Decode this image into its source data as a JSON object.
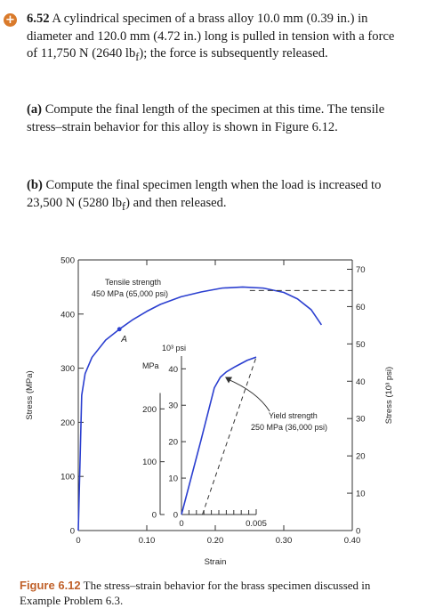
{
  "problem": {
    "number": "6.52",
    "intro": "A cylindrical specimen of a brass alloy 10.0 mm (0.39 in.) in diameter and 120.0 mm (4.72 in.) long is pulled in tension with a force of 11,750 N (2640 lb",
    "intro_sub": "f",
    "intro_end": "); the force is subsequently released.",
    "part_a_label": "(a)",
    "part_a_text": "Compute the final length of the specimen at this time. The tensile stress–strain behavior for this alloy is shown in Figure 6.12.",
    "part_b_label": "(b)",
    "part_b_text": "Compute the final specimen length when the load is increased to 23,500 N (5280 lb",
    "part_b_sub": "f",
    "part_b_end": ") and then released."
  },
  "chart_data": {
    "type": "line",
    "main": {
      "xlabel": "Strain",
      "ylabel_left": "Stress (MPa)",
      "ylabel_right": "Stress (10³ psi)",
      "xlim": [
        0,
        0.4
      ],
      "ylim": [
        0,
        500
      ],
      "x_ticks": [
        {
          "v": 0,
          "t": "0"
        },
        {
          "v": 0.1,
          "t": "0.10"
        },
        {
          "v": 0.2,
          "t": "0.20"
        },
        {
          "v": 0.3,
          "t": "0.30"
        },
        {
          "v": 0.4,
          "t": "0.40"
        }
      ],
      "y_ticks": [
        {
          "v": 0,
          "t": "0"
        },
        {
          "v": 100,
          "t": "100"
        },
        {
          "v": 200,
          "t": "200"
        },
        {
          "v": 300,
          "t": "300"
        },
        {
          "v": 400,
          "t": "400"
        },
        {
          "v": 500,
          "t": "500"
        }
      ],
      "right_ticks": [
        {
          "v": 0,
          "t": "0"
        },
        {
          "v": 10,
          "t": "10"
        },
        {
          "v": 20,
          "t": "20"
        },
        {
          "v": 30,
          "t": "30"
        },
        {
          "v": 40,
          "t": "40"
        },
        {
          "v": 50,
          "t": "50"
        },
        {
          "v": 60,
          "t": "60"
        },
        {
          "v": 70,
          "t": "70"
        }
      ],
      "curve": [
        [
          0,
          0
        ],
        [
          0.005,
          250
        ],
        [
          0.01,
          290
        ],
        [
          0.02,
          320
        ],
        [
          0.04,
          352
        ],
        [
          0.06,
          372
        ],
        [
          0.08,
          390
        ],
        [
          0.1,
          405
        ],
        [
          0.12,
          418
        ],
        [
          0.15,
          432
        ],
        [
          0.18,
          441
        ],
        [
          0.21,
          448
        ],
        [
          0.24,
          450
        ],
        [
          0.27,
          448
        ],
        [
          0.3,
          440
        ],
        [
          0.32,
          428
        ],
        [
          0.34,
          408
        ],
        [
          0.355,
          380
        ]
      ],
      "point_A": [
        0.06,
        372
      ],
      "point_A_label": "A",
      "tensile_strength_value": 450,
      "tensile_label_1": "Tensile strength",
      "tensile_label_2": "450 MPa (65,000 psi)"
    },
    "inset": {
      "xlim": [
        0,
        0.005
      ],
      "ylim": [
        0,
        300
      ],
      "x_ticks": [
        {
          "v": 0,
          "t": "0"
        },
        {
          "v": 0.005,
          "t": "0.005"
        }
      ],
      "y_ticks": [
        {
          "v": 0,
          "t": "0"
        },
        {
          "v": 100,
          "t": "100"
        },
        {
          "v": 200,
          "t": "200"
        }
      ],
      "right_ticks": [
        {
          "v": 0,
          "t": "0"
        },
        {
          "v": 10,
          "t": "10"
        },
        {
          "v": 20,
          "t": "20"
        },
        {
          "v": 30,
          "t": "30"
        },
        {
          "v": 40,
          "t": "40"
        }
      ],
      "unit_mpa": "MPa",
      "unit_psi": "10³ psi",
      "curve": [
        [
          0,
          0
        ],
        [
          0.0013,
          140
        ],
        [
          0.0022,
          240
        ],
        [
          0.0026,
          260
        ],
        [
          0.003,
          270
        ],
        [
          0.0036,
          280
        ],
        [
          0.0044,
          292
        ],
        [
          0.005,
          298
        ]
      ],
      "yield_line": [
        [
          0.0014,
          0
        ],
        [
          0.005,
          298
        ]
      ],
      "yield_label_1": "Yield strength",
      "yield_label_2": "250 MPa (36,000 psi)"
    }
  },
  "caption": {
    "label": "Figure 6.12",
    "text": "The stress–strain behavior for the brass specimen discussed in Example Problem 6.3."
  },
  "colors": {
    "curve": "#2b3fd0",
    "accent": "#c0612a",
    "axis": "#333333"
  }
}
